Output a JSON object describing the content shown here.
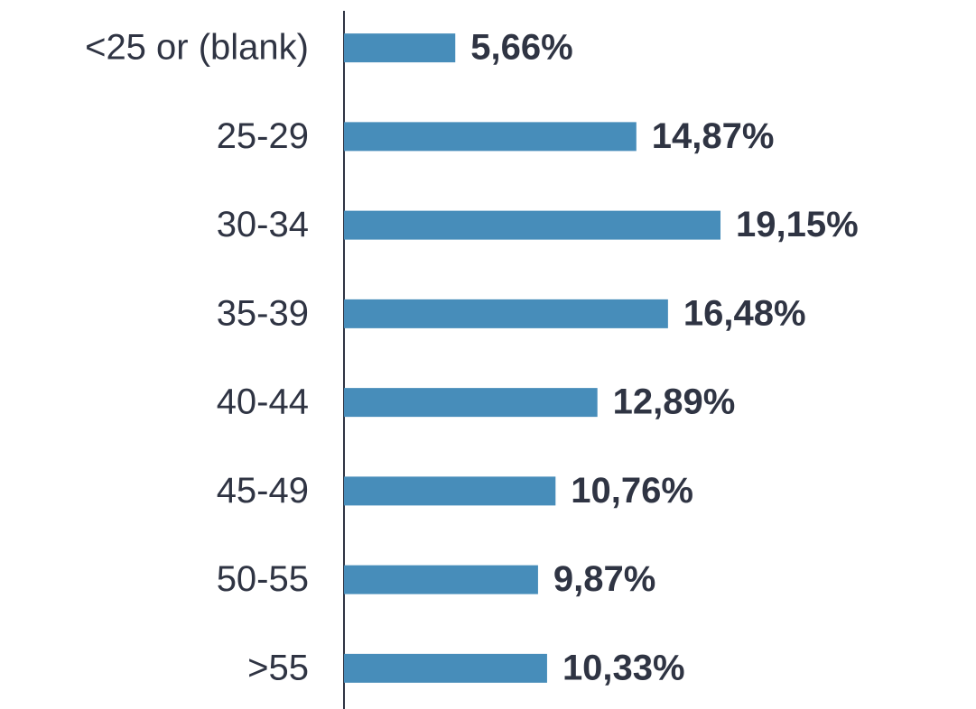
{
  "chart_data": {
    "type": "bar",
    "orientation": "horizontal",
    "categories": [
      "<25 or (blank)",
      "25-29",
      "30-34",
      "35-39",
      "40-44",
      "45-49",
      "50-55",
      ">55"
    ],
    "values": [
      5.66,
      14.87,
      19.15,
      16.48,
      12.89,
      10.76,
      9.87,
      10.33
    ],
    "value_labels": [
      "5,66%",
      "14,87%",
      "19,15%",
      "16,48%",
      "12,89%",
      "10,76%",
      "9,87%",
      "10,33%"
    ],
    "color": "#478dba"
  }
}
